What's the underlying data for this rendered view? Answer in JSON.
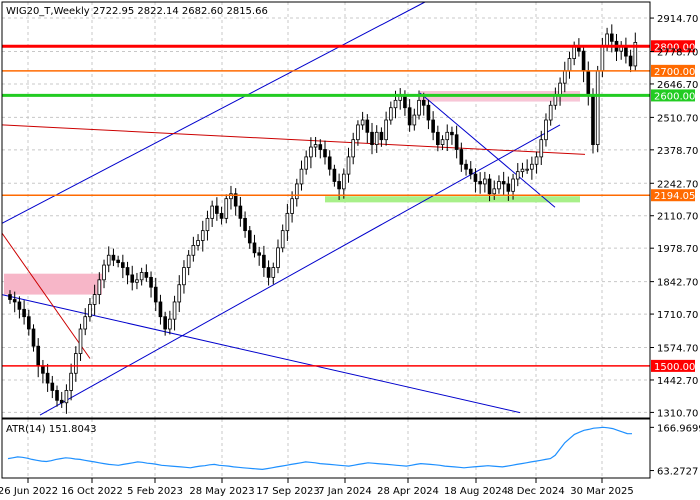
{
  "chart_data": {
    "type": "candlestick",
    "title": "WIG20_T,Weekly  2722.95 2822.14 2682.60 2815.66",
    "ylim": [
      1288,
      2980
    ],
    "y_ticks": [
      "2914.70",
      "2778.70",
      "2646.70",
      "2510.70",
      "2378.70",
      "2242.70",
      "2110.70",
      "1978.70",
      "1842.70",
      "1710.70",
      "1574.70",
      "1442.70",
      "1310.70"
    ],
    "x_ticks": [
      "26 Jun 2022",
      "16 Oct 2022",
      "5 Feb 2023",
      "28 May 2023",
      "17 Sep 2023",
      "7 Jan 2024",
      "28 Apr 2024",
      "18 Aug 2024",
      "8 Dec 2024",
      "30 Mar 2025"
    ],
    "levels": [
      {
        "value": 2800,
        "label": "2800.00",
        "color": "#ff0000"
      },
      {
        "value": 2700,
        "label": "2700.00",
        "color": "#ff6a00"
      },
      {
        "value": 2600,
        "label": "2600.00",
        "color": "#22cc22"
      },
      {
        "value": 2194.05,
        "label": "2194.05",
        "color": "#ff6a00"
      },
      {
        "value": 1500,
        "label": "1500.00",
        "color": "#ff0000"
      }
    ],
    "close": [
      1770,
      1760,
      1730,
      1700,
      1650,
      1580,
      1500,
      1470,
      1430,
      1400,
      1360,
      1350,
      1400,
      1470,
      1550,
      1650,
      1700,
      1750,
      1790,
      1850,
      1910,
      1950,
      1930,
      1920,
      1900,
      1870,
      1840,
      1850,
      1880,
      1860,
      1820,
      1760,
      1700,
      1650,
      1690,
      1760,
      1830,
      1900,
      1950,
      1990,
      2010,
      2050,
      2100,
      2150,
      2120,
      2100,
      2180,
      2200,
      2150,
      2100,
      2050,
      2000,
      1960,
      1950,
      1900,
      1860,
      1900,
      1980,
      2050,
      2120,
      2180,
      2240,
      2300,
      2350,
      2390,
      2400,
      2380,
      2350,
      2300,
      2250,
      2220,
      2280,
      2350,
      2420,
      2480,
      2500,
      2450,
      2400,
      2450,
      2420,
      2500,
      2550,
      2580,
      2600,
      2550,
      2480,
      2520,
      2580,
      2560,
      2500,
      2450,
      2400,
      2420,
      2450,
      2440,
      2380,
      2320,
      2300,
      2280,
      2250,
      2240,
      2260,
      2200,
      2220,
      2250,
      2240,
      2210,
      2260,
      2290,
      2300,
      2300,
      2320,
      2350,
      2420,
      2500,
      2560,
      2600,
      2650,
      2700,
      2750,
      2800,
      2780,
      2700,
      2600,
      2400,
      2700,
      2800,
      2850,
      2820,
      2780,
      2800,
      2760,
      2720,
      2815.66
    ],
    "atr": {
      "label": "ATR(14) 151.8043",
      "ticks": [
        "166.9699",
        "63.2727"
      ],
      "ylim": [
        55,
        175
      ],
      "values": [
        92,
        94,
        96,
        95,
        93,
        90,
        88,
        86,
        85,
        87,
        90,
        92,
        94,
        93,
        91,
        90,
        88,
        86,
        84,
        82,
        80,
        78,
        77,
        76,
        78,
        80,
        82,
        84,
        83,
        81,
        80,
        78,
        76,
        75,
        74,
        73,
        72,
        71,
        70,
        72,
        74,
        75,
        77,
        78,
        76,
        75,
        74,
        72,
        71,
        70,
        69,
        68,
        67,
        66,
        68,
        70,
        72,
        74,
        76,
        78,
        80,
        82,
        84,
        83,
        82,
        80,
        79,
        78,
        77,
        76,
        75,
        74,
        76,
        78,
        80,
        82,
        81,
        80,
        79,
        78,
        77,
        76,
        75,
        74,
        76,
        78,
        80,
        79,
        78,
        77,
        76,
        74,
        73,
        72,
        71,
        70,
        71,
        72,
        73,
        74,
        75,
        74,
        73,
        72,
        74,
        76,
        78,
        80,
        82,
        84,
        86,
        88,
        90,
        92,
        100,
        115,
        130,
        140,
        150,
        155,
        160,
        162,
        165,
        166,
        167,
        166,
        164,
        160,
        156,
        152,
        151.8
      ]
    }
  }
}
